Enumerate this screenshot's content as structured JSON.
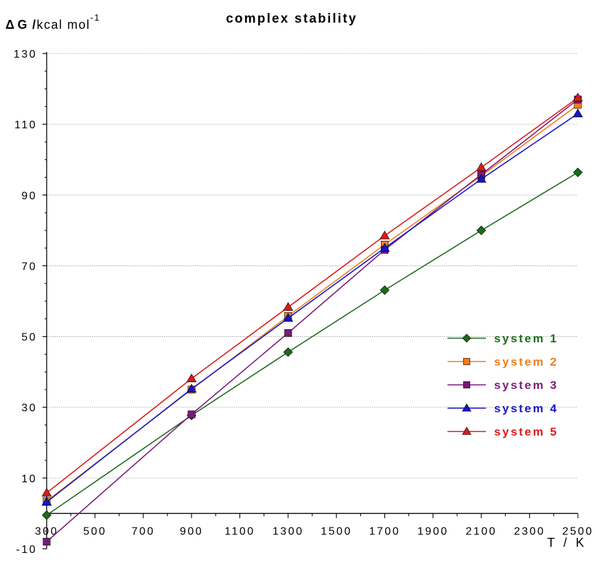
{
  "chart_data": {
    "type": "line",
    "title": "complex stability",
    "ylabel": {
      "delta": "Δ",
      "symbol": "G",
      "slash": "/",
      "unit": "kcal mol",
      "exponent": "-1"
    },
    "xlabel": "T / K",
    "xlim": [
      300,
      2500
    ],
    "ylim": [
      -10,
      130
    ],
    "xticks": [
      300,
      500,
      700,
      900,
      1100,
      1300,
      1500,
      1700,
      1900,
      2100,
      2300,
      2500
    ],
    "yticks": [
      -10,
      10,
      30,
      50,
      70,
      90,
      110,
      130
    ],
    "grid": "horizontal",
    "legend_position": "right",
    "x": [
      300,
      900,
      1300,
      1700,
      2100,
      2500
    ],
    "series": [
      {
        "name": "system 1",
        "color": "#1a6b1a",
        "marker": "diamond",
        "values": [
          -0.5,
          27.7,
          45.6,
          63.1,
          80.0,
          96.4
        ]
      },
      {
        "name": "system 2",
        "color": "#f07d1a",
        "marker": "square",
        "values": [
          3.5,
          35.0,
          55.8,
          76.0,
          95.4,
          115.5
        ]
      },
      {
        "name": "system 3",
        "color": "#7a1a7a",
        "marker": "square",
        "values": [
          -8.0,
          28.0,
          51.0,
          74.5,
          95.8,
          117.0
        ]
      },
      {
        "name": "system 4",
        "color": "#1515c8",
        "marker": "triangle",
        "values": [
          3.2,
          35.2,
          55.2,
          75.0,
          94.5,
          113.0
        ]
      },
      {
        "name": "system 5",
        "color": "#d91a1a",
        "marker": "triangle",
        "values": [
          5.8,
          38.1,
          58.3,
          78.5,
          97.8,
          117.5
        ]
      }
    ]
  }
}
